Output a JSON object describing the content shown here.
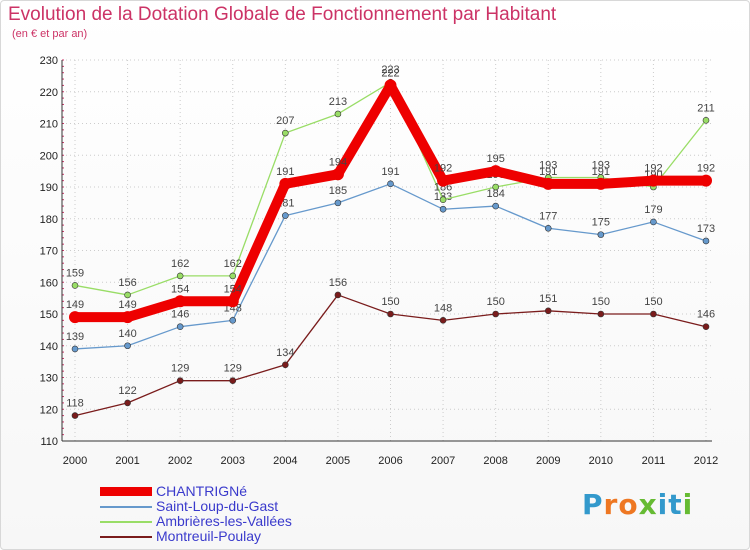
{
  "chart_data": {
    "type": "line",
    "title": "Evolution de la Dotation Globale de Fonctionnement par Habitant",
    "subtitle": "(en € et par an)",
    "xlabel": "",
    "ylabel": "",
    "ylim": [
      110,
      230
    ],
    "yticks": [
      110,
      120,
      130,
      140,
      150,
      160,
      170,
      180,
      190,
      200,
      210,
      220,
      230
    ],
    "categories": [
      "2000",
      "2001",
      "2002",
      "2003",
      "2004",
      "2005",
      "2006",
      "2007",
      "2008",
      "2009",
      "2010",
      "2011",
      "2012"
    ],
    "grid": true,
    "legend_position": "bottom-left",
    "series": [
      {
        "name": "Montreuil-Poulay",
        "color": "#7a1c1c",
        "values": [
          118,
          122,
          129,
          129,
          134,
          156,
          150,
          148,
          150,
          151,
          150,
          150,
          146
        ]
      },
      {
        "name": "Saint-Loup-du-Gast",
        "color": "#6699cc",
        "values": [
          139,
          140,
          146,
          148,
          181,
          185,
          191,
          183,
          184,
          177,
          175,
          179,
          173
        ]
      },
      {
        "name": "Ambrières-les-Vallées",
        "color": "#99dd66",
        "values": [
          159,
          156,
          162,
          162,
          207,
          213,
          223,
          186,
          190,
          193,
          193,
          190,
          211
        ]
      },
      {
        "name": "CHANTRIGNé",
        "color": "#ee0000",
        "values": [
          149,
          149,
          154,
          154,
          191,
          194,
          222,
          192,
          195,
          191,
          191,
          192,
          192
        ]
      }
    ],
    "legend": [
      "CHANTRIGNé",
      "Saint-Loup-du-Gast",
      "Ambrières-les-Vallées",
      "Montreuil-Poulay"
    ],
    "colors": {
      "title": "#cc3366",
      "grid": "#cccccc",
      "axis": "#333333",
      "legend_text": "#3a3acc"
    }
  },
  "logo": {
    "text": "Proxiti",
    "letter_colors": [
      "#3399cc",
      "#ee7722",
      "#ee7722",
      "#66bb33",
      "#3399cc",
      "#3399cc",
      "#66bb33"
    ]
  }
}
